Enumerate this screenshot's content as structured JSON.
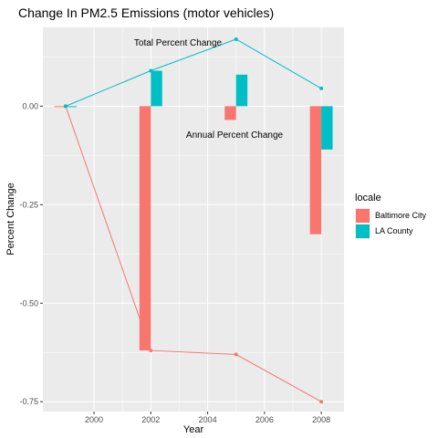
{
  "chart_data": {
    "type": "bar",
    "title": "Change In PM2.5 Emissions (motor vehicles)",
    "xlabel": "Year",
    "ylabel": "Percent Change",
    "xlim": [
      1998.2,
      2008.8
    ],
    "ylim": [
      -0.775,
      0.2
    ],
    "x_ticks": [
      2000,
      2002,
      2004,
      2006,
      2008
    ],
    "y_ticks": [
      0.0,
      -0.25,
      -0.5,
      -0.75
    ],
    "y_tick_labels": [
      "0.00",
      "-0.25",
      "-0.50",
      "-0.75"
    ],
    "grid": true,
    "legend": {
      "title": "locale",
      "position": "right",
      "entries": [
        "Baltimore City",
        "LA County"
      ]
    },
    "colors": {
      "Baltimore City": "#f8766d",
      "LA County": "#00bfc4",
      "panel": "#ebebeb",
      "grid": "#ffffff"
    },
    "annotations": {
      "total": "Total Percent Change",
      "annual": "Annual Percent Change"
    },
    "series": [
      {
        "name": "Baltimore City",
        "bars": [
          {
            "x": 1999,
            "y": 0.0
          },
          {
            "x": 2002,
            "y": -0.62
          },
          {
            "x": 2005,
            "y": -0.035
          },
          {
            "x": 2008,
            "y": -0.325
          }
        ],
        "line": [
          {
            "x": 1999,
            "y": 0.0
          },
          {
            "x": 2002,
            "y": -0.62
          },
          {
            "x": 2005,
            "y": -0.63
          },
          {
            "x": 2008,
            "y": -0.75
          }
        ]
      },
      {
        "name": "LA County",
        "bars": [
          {
            "x": 1999,
            "y": 0.0
          },
          {
            "x": 2002,
            "y": 0.09
          },
          {
            "x": 2005,
            "y": 0.08
          },
          {
            "x": 2008,
            "y": -0.11
          }
        ],
        "line": [
          {
            "x": 1999,
            "y": 0.0
          },
          {
            "x": 2002,
            "y": 0.09
          },
          {
            "x": 2005,
            "y": 0.17
          },
          {
            "x": 2008,
            "y": 0.045
          }
        ]
      }
    ]
  }
}
